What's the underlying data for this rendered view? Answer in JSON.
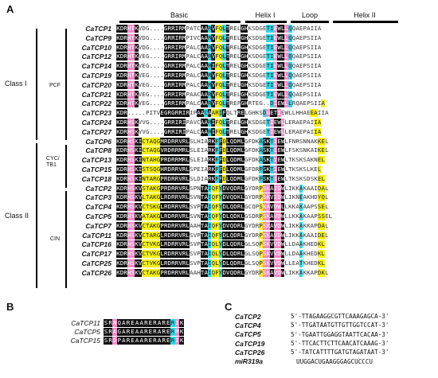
{
  "panels": {
    "a": "A",
    "b": "B",
    "c": "C"
  },
  "regions": {
    "basic": "Basic",
    "helix1": "Helix I",
    "loop": "Loop",
    "helix2": "Helix II"
  },
  "classes": {
    "class1": "Class I",
    "class2": "Class II"
  },
  "subclasses": {
    "pcf": "PCF",
    "cyc": "CYC/\nTB1",
    "cin": "CIN"
  },
  "alignment": [
    {
      "gene": "CaTCP1",
      "seq": "KDRHTKVDG....GRRIRMPATCAARVFQLTRELGHKSDGETIEWLLQQAEPAIIA",
      "col": "kkkppkwwwwwwwkkkkkkwwwwkkckyyckwwwkkwwwwwccpkkpcwwwwwwwwyy"
    },
    {
      "gene": "CaTCP9",
      "seq": "KDRHTKVDG....GRRIRMPIVCAARVFQLTRELGHKSDGETIEWLLQQAEPSIIA",
      "col": "kkkppkwwwwwwwkkkkkkwwwwkkckyyckwwwkkwwwwwccpkkpcwwwwwwwwyy"
    },
    {
      "gene": "CaTCP10",
      "seq": "KDRHTKVDG....GRRIRMPALCAARVFQLTRELGHKSDGETIEWLLQQAEPSIIA",
      "col": "kkkppkwwwwwwwkkkkkkwwwwkkckyyckwwwkkwwwwwccpkkpcwwwwwwwwyy"
    },
    {
      "gene": "CaTCP12",
      "seq": "KDRHTKVEG....GRRIRMPALCAARVFQLTRELGHKSDGETIEWLLQQAEPSIIA",
      "col": "kkkppkwwwwwwwkkkkkkwwwwkkckyyckwwwkkwwwwwccpkkpcwwwwwwwwyy"
    },
    {
      "gene": "CaTCP14",
      "seq": "KDRHTKVEG....GRRIRMPALCAARIFQLTRELGHKSDGETIEWLLQQAEPSIIA",
      "col": "kkkppkwwwwwwwkkkkkkwwwwkkckyyckwwwkkwwwwwccpkkpcwwwwwwwwyy"
    },
    {
      "gene": "CaTCP19",
      "seq": "KDRHTKVEG....GRRIRMPALCAARVFQLTRELGHKSDGETIEWLLQQAEPSIIA",
      "col": "kkkppkwwwwwwwkkkkkkwwwwkkckyyckwwwkkwwwwwccpkkpcwwwwwwwwyy"
    },
    {
      "gene": "CaTCP20",
      "seq": "KDRHTKVEG....GRRIRMPALCAARVFQLTRELGHKSDGETIEWLLQQAEPSIIA",
      "col": "kkkppkwwwwwwwkkkkkkwwwwkkckyyckwwwkkwwwwwccpkkpcwwwwwwwwyy"
    },
    {
      "gene": "CaTCP21",
      "seq": "KDRHTKVEG....GRRIRMPAACAARVFQLTRELGHKSDGETIEWLLQQAEPSIIA",
      "col": "kkkppkwwwwwwwkkkkkkwwwwkkckyyckwwwkkwwwwwccpkkpcwwwwwwwwyy"
    },
    {
      "gene": "CaTCP22",
      "seq": "KDRHTKVEG....GRRIRMPALCAARVFQLTREPGHRTEG..DIEWLLRQAEPSIIA",
      "col": "kkkppkwwwwwwwkkkkkkwwwwkkckyyckwwwkkwwwwwwcpkkpcwwwwwwwwyy"
    },
    {
      "gene": "CaTCP23",
      "seq": "KDR.....PITVEGRGRRIRIPAACAARIFQLTRELGHKSDGETIEWLLHHAEEAIIA",
      "col": "kkkwwwwwwwwwkkkkkkkkwwkkckyyckwwwkkwwwwwcpkkpwwwwwwwwyy"
    },
    {
      "gene": "CaTCP24",
      "seq": "KDRHSKVVG....GRRIRIPAVCAARIFQLTRELGHKSDGETIEWLLERAEPAIIA",
      "col": "kkkppkwwwwwwwkkkkkkwwwwkkckyyckwwwkkwwwwwcpkkpwwwwwwwwyy"
    },
    {
      "gene": "CaTCP27",
      "seq": "KDRHSKVVG....GRRIRIPALCAARIFQLTRELGHKSDGETIEWLLERAEPAIIA",
      "col": "kkkppkwwwwwwwkkkkkkwwwwkkckyyckwwwkkwwwwwcpkkpwwwwwwwwyy"
    },
    {
      "gene": "CaTCP6",
      "seq": "KDRHSKICTAQGMRDRRVRLSLHIARKFFDLQDMLGFDKASKTIEWLFNRSNNAKKEL",
      "col": "kkkppkkyyyyykkkkkkkkwwwwwkkckykkkkkwwwwckkcpkkwwwwwwwwwyy"
    },
    {
      "gene": "CaTCP8",
      "seq": "KDRHSKICTAQGVRDRRMRLSLEIARKFFDLQDMLGFDKASKTIEWLFSKSNKAIKEL",
      "col": "kkkppkkyyyyykkkkkkkkwwwwwkkckykkkkkwwwwckkcpkkwwwwwwwwwyy"
    },
    {
      "gene": "CaTCP13",
      "seq": "KDRHSKINTAHGPRDRRMRLSLEIARKFFDLQDMLGFDKASKTIEWLTKSKSAKNEL",
      "col": "kkkppkkyyyyykkkkkkkkwwwwwkkckykkkkkwwwwckkcpkkwwwwwwwwwyy"
    },
    {
      "gene": "CaTCP15",
      "seq": "KDRHSKISTSQGHRDRRVRLSPEIARKFFDLQDMLGFDRPSKTIEWLTKSKSLKEL",
      "col": "kkkppkkyyyyykkkkkkkkwwwwwkkckykkkkkwwwwckkcpkkwwwwwwwwwyy"
    },
    {
      "gene": "CaTCP18",
      "seq": "KDRHSKINTARGPRDRRVRLSLDIARKFFDLQDMLGFDKPSKTIEWLTKSKSDSKEL",
      "col": "kkkppkkyyyyykkkkkkkkwwwwwkkckykkkkkwwwwckkcpkkwwwwwwwwwyy"
    },
    {
      "gene": "CaTCP2",
      "seq": "KDRHSKVSTAKGPRDRRVRLSPNTAIQFYDVQDRLGYDRPSKAIDWLIKKAKAAIDAL",
      "col": "kkkppkkyyyyykkkkkkkkwwwkkcyyckkkkkkwwwwyppkppkwwwwcwwwwyy"
    },
    {
      "gene": "CaTCP3",
      "seq": "KDRHSKVLTAKGLRDRRVRLSVNTAIQFYDVQDKLGYDRPSKVIDWLIKNEAKHDYQL",
      "col": "kkkppkkyyyyykkkkkkkkwwwkkcyyckkkkkkwwwwyppkppkwwwwcwwwwyy"
    },
    {
      "gene": "CaTCP4",
      "seq": "KDRHSKVCTSKGLRDRRVRLSVPTAIQFYDLQDRLGCQPSKAVDWLLKKAKAAPSSEL",
      "col": "kkkppkkyyyyykkkkkkkkwwwkkcyyckkkkkkwwwwyppkppkwwwwcwwwwyy"
    },
    {
      "gene": "CaTCP5",
      "seq": "KDRHSKVATAKGLRDRRVRLSVNTAIQFYDLQDKLGSDRPSKAVDWLLKKAKAAPSSEL",
      "col": "kkkppkkyyyyykkkkkkkkwwwkkcyyckkkkkkwwwwyppkppkwwwwcwwwwyy"
    },
    {
      "gene": "CaTCP7",
      "seq": "KDRHSKVCTAKGPRDRRVRLAAHTAIQFYDVQDRLGYDRPSKAVDWLIKKAKKAPDAL",
      "col": "kkkppkkyyyyykkkkkkkkwwwkkcyyckkkkkkwwwwyppkppkwwwwcwwwwyy"
    },
    {
      "gene": "CaTCP11",
      "seq": "KDRHSKVCTARGLRDRRVRLSVPTAIQFYDLQDRLGYDRPSKAVDWLIKKAKAAIDEL",
      "col": "kkkppkkyyyyykkkkkkkkwwwkkcyyckkkkkkwwwwyppkppkwwwwcwwwwyy"
    },
    {
      "gene": "CaTCP16",
      "seq": "KDRHSKVCTVKGLRDRRVRLSVPTAIQLYDLQDRLGLSQPSKVVDWLLDAAKHEDKL",
      "col": "kkkppkkyyyyykkkkkkkkwwwkkcyyckkkkkkwwwwyppkppkwwwwcwwwwyy"
    },
    {
      "gene": "CaTCP17",
      "seq": "KDRHSKVCTVKGLRDRRVRLSVPTAIQLYDLQDRLGLSQPSKVVDWLLDAAKHEDKL",
      "col": "kkkppkkyyyyykkkkkkkkwwwkkcyyckkkkkkwwwwyppkppkwwwwcwwwwyy"
    },
    {
      "gene": "CaTCP25",
      "seq": "KDRHSKVCTVKGLRDRRVRLSVPTAIQLYDLQDRLGLSQPSKVVDWLLEATKHEDKL",
      "col": "kkkppkkyyyyykkkkkkkkwwwkkcyyckkkkkkwwwwyppkppkwwwwcwwwwyy"
    },
    {
      "gene": "CaTCP26",
      "seq": "KDRHSKVCTAKGPRDRRVRLAAHTAIQFYDVQDRLGYDRPSKAVDWLIKKAKKAPDKL",
      "col": "kkkppkkyyyyykkkkkkkkwwwkkcyyckkkkkkwwwwyppkppkwwwwcwwwwyy"
    }
  ],
  "panel_b": [
    {
      "gene": "CaTCP11",
      "seq": "SRNQAREAARERARERIK",
      "col": "kkpkkkkkkkkkkkkcpkk"
    },
    {
      "gene": "CaTCP5",
      "seq": "SRAGAREAARERARERMK",
      "col": "kkpkkkkkkkkkkkkcpkk"
    },
    {
      "gene": "CaTCP15",
      "seq": "SRDPAREAARERARERIK",
      "col": "kkpkkkkkkkkkkkkcpkk"
    }
  ],
  "panel_c": [
    {
      "gene": "CaTCP2",
      "seq": "5'-TTAGAAGGCGTTCAAAGAGCA-3'"
    },
    {
      "gene": "CaTCP4",
      "seq": "5'-TTGATAATGTTGTTGGTCCAT-3'"
    },
    {
      "gene": "CaTCP5",
      "seq": "5'-TGAATTGGAGGTAATTCACAA-3'"
    },
    {
      "gene": "CaTCP19",
      "seq": "5'-TTCACTTCTTCAACATCAAAG-3'"
    },
    {
      "gene": "CaTCP26",
      "seq": "5'-TATCATTTTGATGTAGATAAT-3'"
    },
    {
      "gene": "miR319a",
      "seq": "UUGGACUGAAGGGAGCUCCCU"
    }
  ]
}
